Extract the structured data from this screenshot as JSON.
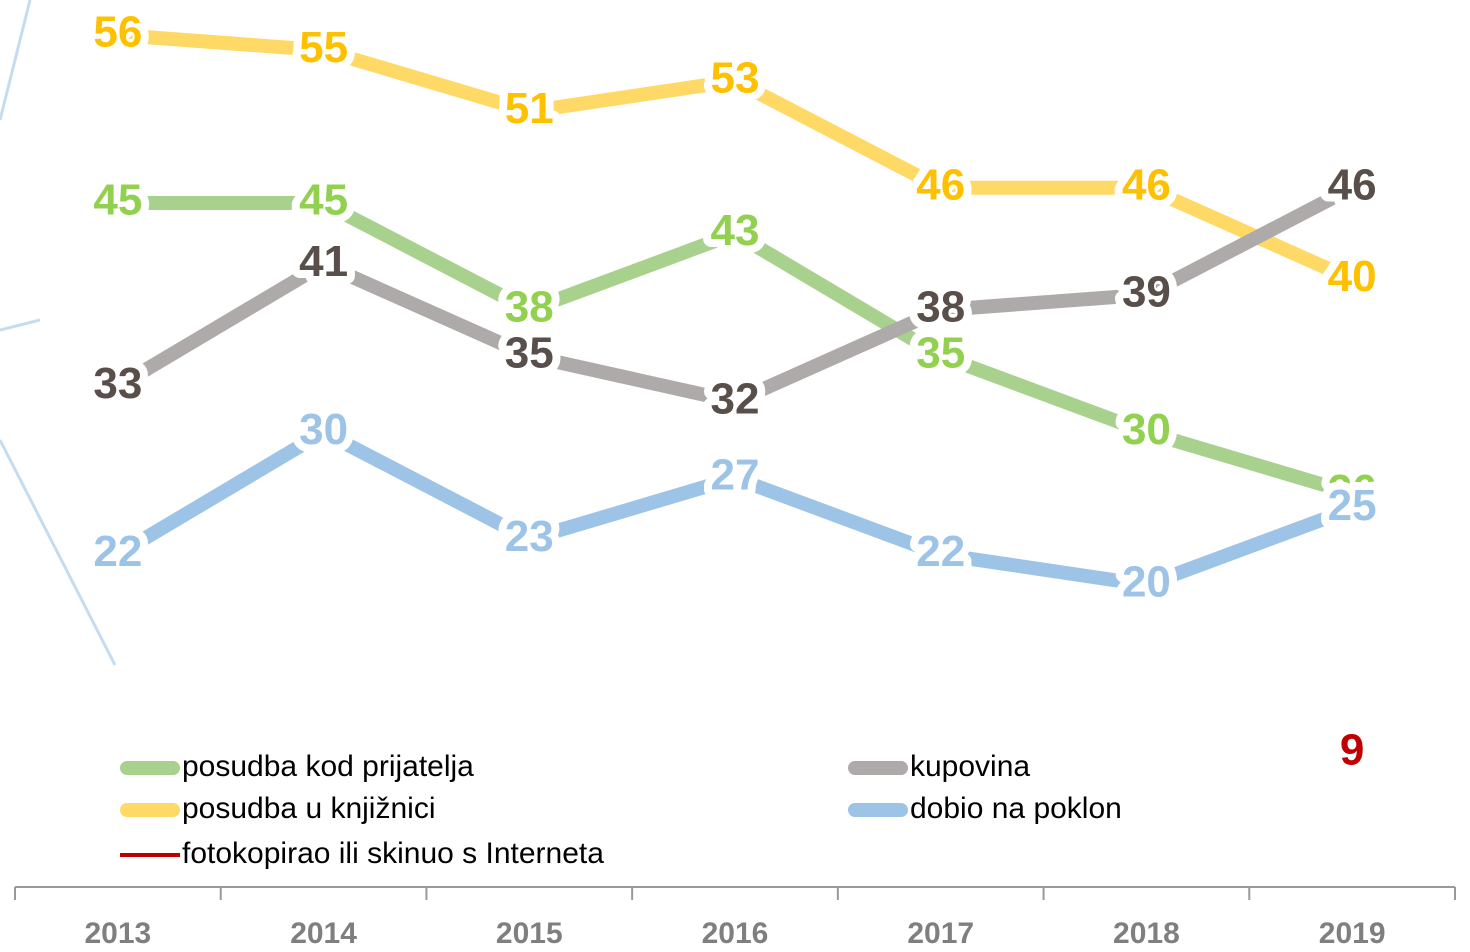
{
  "chart_data": {
    "type": "line",
    "categories": [
      "2013",
      "2014",
      "2015",
      "2016",
      "2017",
      "2018",
      "2019"
    ],
    "series": [
      {
        "name": "posudba kod prijatelja",
        "color": "#a9d18e",
        "label_color": "#92d050",
        "values": [
          45,
          45,
          38,
          43,
          35,
          30,
          26
        ]
      },
      {
        "name": "posudba u knjižnici",
        "color": "#ffd966",
        "label_color": "#ffc000",
        "values": [
          56,
          55,
          51,
          53,
          46,
          46,
          40
        ]
      },
      {
        "name": "kupovina",
        "color": "#aeaaaa",
        "label_color": "#594f4a",
        "values": [
          33,
          41,
          35,
          32,
          38,
          39,
          46
        ]
      },
      {
        "name": "dobio na poklon",
        "color": "#9dc3e6",
        "label_color": "#9dc3e6",
        "values": [
          22,
          30,
          23,
          27,
          22,
          20,
          25
        ]
      },
      {
        "name": "fotokopirao ili skinuo s Interneta",
        "color": "#c00000",
        "label_color": "#c00000",
        "values": [
          null,
          null,
          null,
          null,
          null,
          null,
          9
        ]
      }
    ]
  }
}
